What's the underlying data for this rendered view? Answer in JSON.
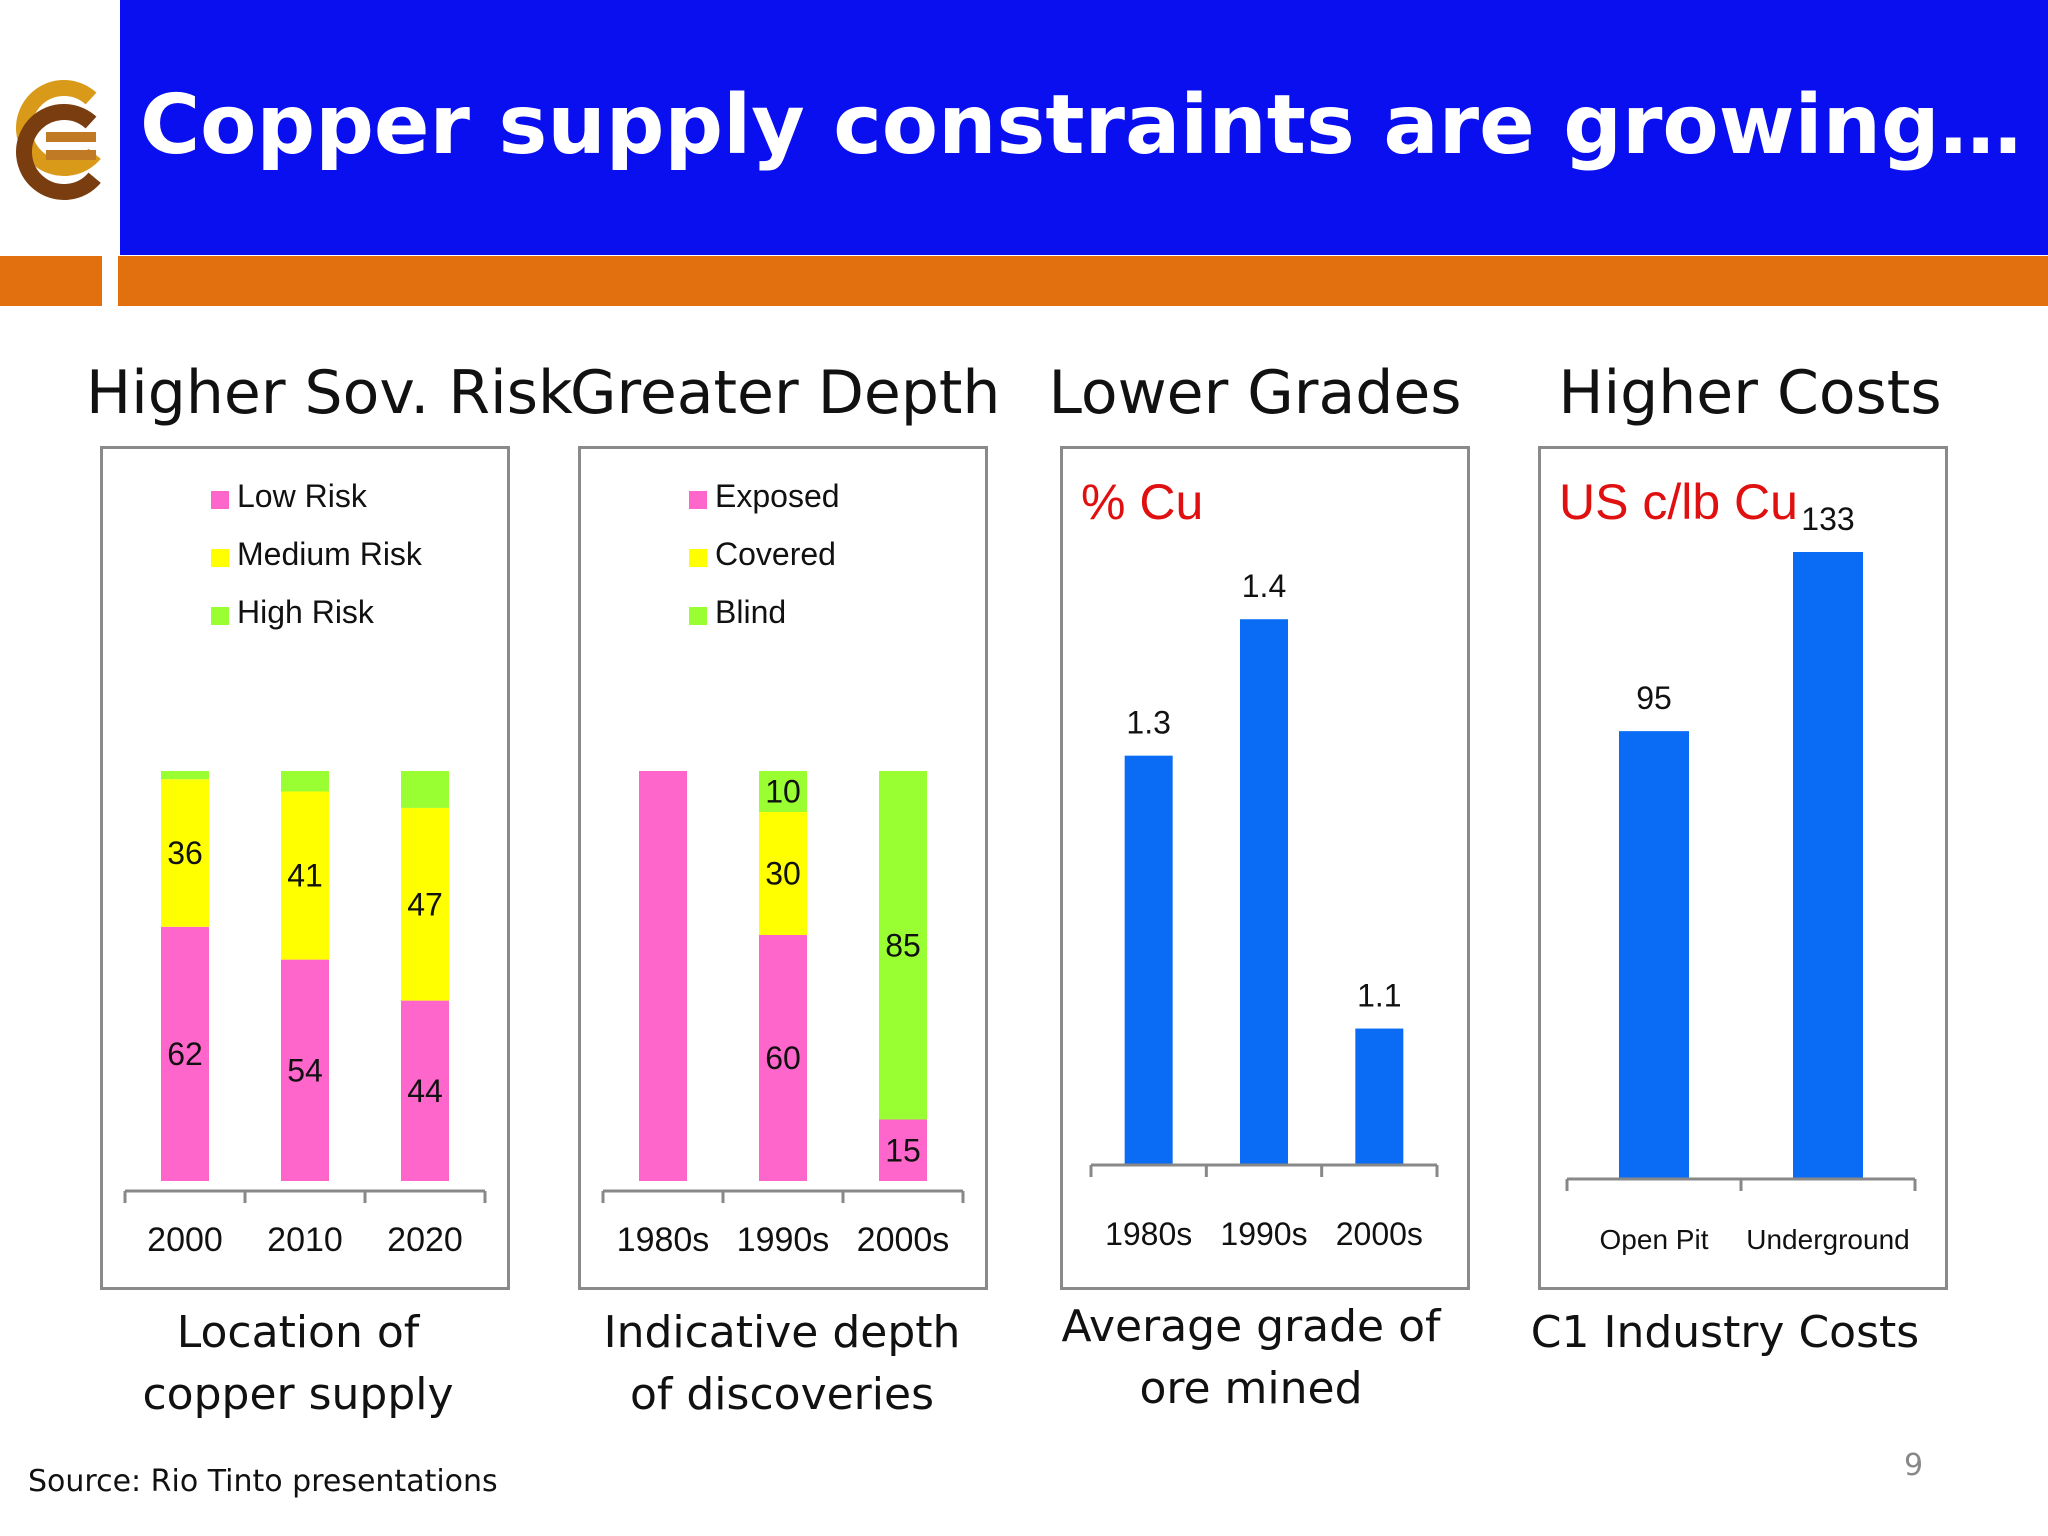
{
  "slide": {
    "title": "Copper supply constraints are growing…",
    "source": "Source: Rio Tinto presentations",
    "page_number": "9",
    "logo_icon": "copper-logo-icon",
    "colors": {
      "header_blue": "#0a0ff0",
      "header_orange": "#e3700e",
      "bar_blue": "#0a6cf5",
      "unit_red": "#e01010"
    }
  },
  "panels": [
    {
      "heading": "Higher Sov. Risk",
      "caption_lines": [
        "Location of",
        "copper supply"
      ]
    },
    {
      "heading": "Greater Depth",
      "caption_lines": [
        "Indicative depth",
        "of discoveries"
      ]
    },
    {
      "heading": "Lower Grades",
      "caption_lines": [
        "Average grade of",
        "ore mined"
      ]
    },
    {
      "heading": "Higher Costs",
      "caption_lines": [
        "C1 Industry Costs"
      ]
    }
  ],
  "chart_data": [
    {
      "type": "bar",
      "stacked": true,
      "percent_stacked": true,
      "categories": [
        "2000",
        "2010",
        "2020"
      ],
      "series": [
        {
          "name": "Low Risk",
          "color": "#ff66cc",
          "values": [
            62,
            54,
            44
          ]
        },
        {
          "name": "Medium Risk",
          "color": "#ffff00",
          "values": [
            36,
            41,
            47
          ]
        },
        {
          "name": "High Risk",
          "color": "#99ff33",
          "values": [
            2,
            5,
            9
          ]
        }
      ],
      "labeled_series": [
        "Low Risk",
        "Medium Risk"
      ],
      "legend": "top",
      "grid": false
    },
    {
      "type": "bar",
      "stacked": true,
      "percent_stacked": true,
      "categories": [
        "1980s",
        "1990s",
        "2000s"
      ],
      "series": [
        {
          "name": "Exposed",
          "color": "#ff66cc",
          "values": [
            100,
            60,
            15
          ]
        },
        {
          "name": "Covered",
          "color": "#ffff00",
          "values": [
            0,
            30,
            0
          ]
        },
        {
          "name": "Blind",
          "color": "#99ff33",
          "values": [
            0,
            10,
            85
          ]
        }
      ],
      "unlabeled_points": [
        [
          0,
          0
        ]
      ],
      "legend": "top",
      "grid": false
    },
    {
      "type": "bar",
      "unit_label": "% Cu",
      "categories": [
        "1980s",
        "1990s",
        "2000s"
      ],
      "values": [
        1.3,
        1.4,
        1.1
      ],
      "value_labels": [
        "1.3",
        "1.4",
        "1.1"
      ],
      "ylim": [
        1.0,
        1.45
      ],
      "grid": false
    },
    {
      "type": "bar",
      "unit_label": "US c/lb Cu",
      "categories": [
        "Open Pit",
        "Underground"
      ],
      "values": [
        95,
        133
      ],
      "value_labels": [
        "95",
        "133"
      ],
      "ylim": [
        0,
        140
      ],
      "grid": false
    }
  ]
}
